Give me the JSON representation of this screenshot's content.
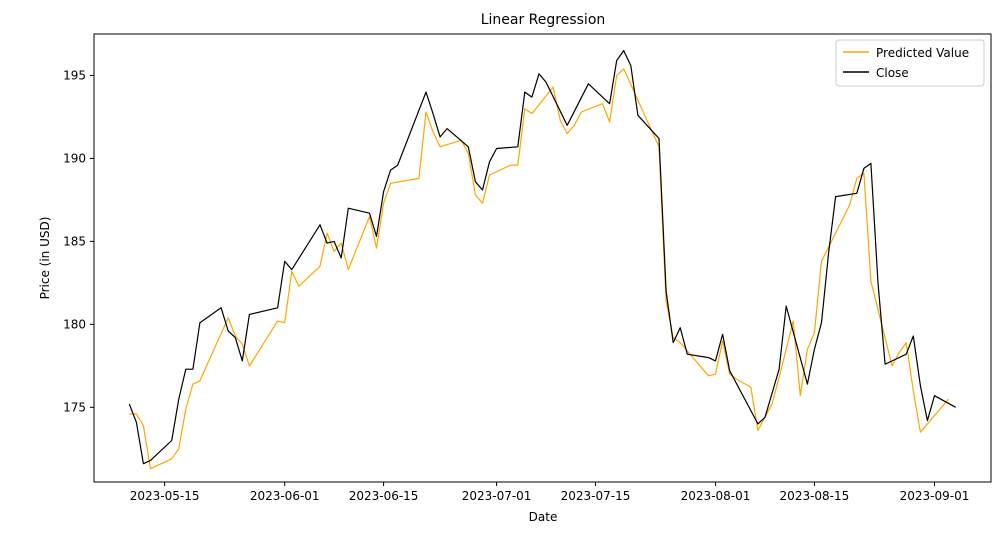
{
  "chart_data": {
    "type": "line",
    "title": "Linear Regression",
    "xlabel": "Date",
    "ylabel": "Price (in USD)",
    "x_ticks": [
      "2023-05-15",
      "2023-06-01",
      "2023-06-15",
      "2023-07-01",
      "2023-07-15",
      "2023-08-01",
      "2023-08-15",
      "2023-09-01"
    ],
    "y_ticks": [
      175,
      180,
      185,
      190,
      195
    ],
    "xlim": [
      "2023-05-05",
      "2023-09-09"
    ],
    "ylim": [
      170.5,
      197.5
    ],
    "grid": false,
    "legend_position": "top-right",
    "series": [
      {
        "name": "Predicted Value",
        "color": "#FFA500",
        "points": [
          [
            "2023-05-10",
            174.6
          ],
          [
            "2023-05-11",
            174.6
          ],
          [
            "2023-05-12",
            173.9
          ],
          [
            "2023-05-13",
            171.3
          ],
          [
            "2023-05-16",
            171.9
          ],
          [
            "2023-05-17",
            172.5
          ],
          [
            "2023-05-18",
            174.9
          ],
          [
            "2023-05-19",
            176.4
          ],
          [
            "2023-05-20",
            176.6
          ],
          [
            "2023-05-24",
            180.4
          ],
          [
            "2023-05-25",
            179.3
          ],
          [
            "2023-05-26",
            178.8
          ],
          [
            "2023-05-27",
            177.5
          ],
          [
            "2023-05-31",
            180.2
          ],
          [
            "2023-06-01",
            180.1
          ],
          [
            "2023-06-02",
            183.2
          ],
          [
            "2023-06-03",
            182.3
          ],
          [
            "2023-06-06",
            183.5
          ],
          [
            "2023-06-07",
            185.5
          ],
          [
            "2023-06-08",
            184.4
          ],
          [
            "2023-06-09",
            184.9
          ],
          [
            "2023-06-10",
            183.3
          ],
          [
            "2023-06-13",
            186.5
          ],
          [
            "2023-06-14",
            184.6
          ],
          [
            "2023-06-15",
            187.3
          ],
          [
            "2023-06-16",
            188.5
          ],
          [
            "2023-06-20",
            188.8
          ],
          [
            "2023-06-21",
            192.8
          ],
          [
            "2023-06-22",
            191.6
          ],
          [
            "2023-06-23",
            190.7
          ],
          [
            "2023-06-26",
            191.1
          ],
          [
            "2023-06-27",
            190.3
          ],
          [
            "2023-06-28",
            187.8
          ],
          [
            "2023-06-29",
            187.3
          ],
          [
            "2023-06-30",
            189.0
          ],
          [
            "2023-07-03",
            189.6
          ],
          [
            "2023-07-04",
            189.6
          ],
          [
            "2023-07-05",
            193.0
          ],
          [
            "2023-07-06",
            192.7
          ],
          [
            "2023-07-09",
            194.3
          ],
          [
            "2023-07-10",
            192.3
          ],
          [
            "2023-07-11",
            191.5
          ],
          [
            "2023-07-12",
            192.0
          ],
          [
            "2023-07-13",
            192.8
          ],
          [
            "2023-07-16",
            193.3
          ],
          [
            "2023-07-17",
            192.2
          ],
          [
            "2023-07-18",
            195.0
          ],
          [
            "2023-07-19",
            195.4
          ],
          [
            "2023-07-24",
            190.7
          ],
          [
            "2023-07-25",
            181.4
          ],
          [
            "2023-07-26",
            179.2
          ],
          [
            "2023-07-27",
            178.9
          ],
          [
            "2023-07-31",
            176.9
          ],
          [
            "2023-08-01",
            177.0
          ],
          [
            "2023-08-02",
            179.0
          ],
          [
            "2023-08-03",
            177.0
          ],
          [
            "2023-08-04",
            176.7
          ],
          [
            "2023-08-06",
            176.2
          ],
          [
            "2023-08-07",
            173.6
          ],
          [
            "2023-08-09",
            175.2
          ],
          [
            "2023-08-10",
            176.8
          ],
          [
            "2023-08-12",
            180.2
          ],
          [
            "2023-08-13",
            175.7
          ],
          [
            "2023-08-14",
            178.5
          ],
          [
            "2023-08-15",
            179.5
          ],
          [
            "2023-08-16",
            183.8
          ],
          [
            "2023-08-20",
            187.2
          ],
          [
            "2023-08-21",
            188.8
          ],
          [
            "2023-08-22",
            189.1
          ],
          [
            "2023-08-23",
            182.6
          ],
          [
            "2023-08-26",
            177.5
          ],
          [
            "2023-08-27",
            178.3
          ],
          [
            "2023-08-28",
            178.9
          ],
          [
            "2023-08-29",
            176.0
          ],
          [
            "2023-08-30",
            173.5
          ],
          [
            "2023-09-03",
            175.5
          ]
        ]
      },
      {
        "name": "Close",
        "color": "#000000",
        "points": [
          [
            "2023-05-10",
            175.2
          ],
          [
            "2023-05-11",
            174.1
          ],
          [
            "2023-05-12",
            171.6
          ],
          [
            "2023-05-13",
            171.8
          ],
          [
            "2023-05-16",
            173.0
          ],
          [
            "2023-05-17",
            175.5
          ],
          [
            "2023-05-18",
            177.3
          ],
          [
            "2023-05-19",
            177.3
          ],
          [
            "2023-05-20",
            180.1
          ],
          [
            "2023-05-23",
            181.0
          ],
          [
            "2023-05-24",
            179.6
          ],
          [
            "2023-05-25",
            179.2
          ],
          [
            "2023-05-26",
            177.8
          ],
          [
            "2023-05-27",
            180.6
          ],
          [
            "2023-05-31",
            181.0
          ],
          [
            "2023-06-01",
            183.8
          ],
          [
            "2023-06-02",
            183.3
          ],
          [
            "2023-06-06",
            186.0
          ],
          [
            "2023-06-07",
            184.9
          ],
          [
            "2023-06-08",
            185.0
          ],
          [
            "2023-06-09",
            184.0
          ],
          [
            "2023-06-10",
            187.0
          ],
          [
            "2023-06-13",
            186.7
          ],
          [
            "2023-06-14",
            185.3
          ],
          [
            "2023-06-15",
            188.0
          ],
          [
            "2023-06-16",
            189.3
          ],
          [
            "2023-06-17",
            189.6
          ],
          [
            "2023-06-21",
            194.0
          ],
          [
            "2023-06-22",
            192.7
          ],
          [
            "2023-06-23",
            191.3
          ],
          [
            "2023-06-24",
            191.8
          ],
          [
            "2023-06-27",
            190.7
          ],
          [
            "2023-06-28",
            188.6
          ],
          [
            "2023-06-29",
            188.1
          ],
          [
            "2023-06-30",
            189.8
          ],
          [
            "2023-07-01",
            190.6
          ],
          [
            "2023-07-04",
            190.7
          ],
          [
            "2023-07-05",
            194.0
          ],
          [
            "2023-07-06",
            193.7
          ],
          [
            "2023-07-07",
            195.1
          ],
          [
            "2023-07-08",
            194.6
          ],
          [
            "2023-07-11",
            192.0
          ],
          [
            "2023-07-14",
            194.5
          ],
          [
            "2023-07-17",
            193.3
          ],
          [
            "2023-07-18",
            195.9
          ],
          [
            "2023-07-19",
            196.5
          ],
          [
            "2023-07-20",
            195.6
          ],
          [
            "2023-07-21",
            192.6
          ],
          [
            "2023-07-24",
            191.2
          ],
          [
            "2023-07-25",
            182.0
          ],
          [
            "2023-07-26",
            178.9
          ],
          [
            "2023-07-27",
            179.8
          ],
          [
            "2023-07-28",
            178.2
          ],
          [
            "2023-07-31",
            178.0
          ],
          [
            "2023-08-01",
            177.8
          ],
          [
            "2023-08-02",
            179.4
          ],
          [
            "2023-08-03",
            177.2
          ],
          [
            "2023-08-07",
            174.0
          ],
          [
            "2023-08-08",
            174.4
          ],
          [
            "2023-08-10",
            177.3
          ],
          [
            "2023-08-11",
            181.1
          ],
          [
            "2023-08-14",
            176.4
          ],
          [
            "2023-08-15",
            178.5
          ],
          [
            "2023-08-16",
            180.1
          ],
          [
            "2023-08-17",
            184.3
          ],
          [
            "2023-08-18",
            187.7
          ],
          [
            "2023-08-21",
            187.9
          ],
          [
            "2023-08-22",
            189.4
          ],
          [
            "2023-08-23",
            189.7
          ],
          [
            "2023-08-24",
            182.5
          ],
          [
            "2023-08-25",
            177.6
          ],
          [
            "2023-08-28",
            178.2
          ],
          [
            "2023-08-29",
            179.3
          ],
          [
            "2023-08-30",
            176.3
          ],
          [
            "2023-08-31",
            174.2
          ],
          [
            "2023-09-01",
            175.7
          ],
          [
            "2023-09-04",
            175.0
          ]
        ]
      }
    ]
  }
}
